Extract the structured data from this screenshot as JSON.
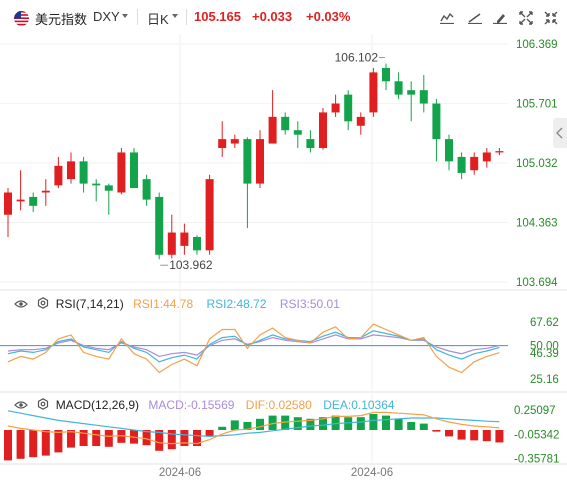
{
  "header": {
    "symbol_name": "美元指数",
    "ticker": "DXY",
    "period": "日K",
    "price": "105.165",
    "change": "+0.033",
    "change_pct": "+0.03%"
  },
  "toolbar": {
    "icons": [
      "indicator-icon",
      "draw-icon",
      "settings-icon",
      "fullscreen-icon",
      "collapse-icon"
    ]
  },
  "colors": {
    "up": "#e02020",
    "down": "#13a34a",
    "rsi1": "#f5a04a",
    "rsi2": "#43b5d8",
    "rsi3": "#a98bdb",
    "macd_line": "#f5a04a",
    "dea_line": "#43b5d8",
    "axis_text": "#2a8a2a"
  },
  "price_axis": [
    "106.369",
    "105.701",
    "105.032",
    "104.363",
    "103.694"
  ],
  "annotations": {
    "high": "106.102",
    "low": "103.962"
  },
  "rsi": {
    "title": "RSI(7,14,21)",
    "rsi1": "RSI1:44.78",
    "rsi2": "RSI2:48.72",
    "rsi3": "RSI3:50.01",
    "axis": [
      "67.62",
      "50.00",
      "46.39",
      "25.16"
    ]
  },
  "macd": {
    "title": "MACD(12,26,9)",
    "macd": "MACD:-0.15569",
    "dif": "DIF:0.02580",
    "dea": "DEA:0.10364",
    "axis": [
      "0.25097",
      "-0.05342",
      "-0.35781"
    ]
  },
  "x_axis": [
    "2024-06",
    "2024-06"
  ],
  "chart_data": {
    "type": "candlestick",
    "yrange": [
      103.694,
      106.369
    ],
    "candles": [
      {
        "o": 104.45,
        "h": 104.75,
        "l": 104.2,
        "c": 104.7
      },
      {
        "o": 104.6,
        "h": 104.95,
        "l": 104.5,
        "c": 104.62
      },
      {
        "o": 104.65,
        "h": 104.7,
        "l": 104.48,
        "c": 104.55
      },
      {
        "o": 104.7,
        "h": 104.85,
        "l": 104.55,
        "c": 104.72
      },
      {
        "o": 104.78,
        "h": 105.1,
        "l": 104.75,
        "c": 105.0
      },
      {
        "o": 104.85,
        "h": 105.15,
        "l": 104.8,
        "c": 105.05
      },
      {
        "o": 105.05,
        "h": 105.1,
        "l": 104.7,
        "c": 104.8
      },
      {
        "o": 104.8,
        "h": 104.85,
        "l": 104.6,
        "c": 104.78
      },
      {
        "o": 104.78,
        "h": 104.8,
        "l": 104.45,
        "c": 104.72
      },
      {
        "o": 104.7,
        "h": 105.2,
        "l": 104.68,
        "c": 105.15
      },
      {
        "o": 105.15,
        "h": 105.2,
        "l": 104.75,
        "c": 104.75
      },
      {
        "o": 104.85,
        "h": 104.9,
        "l": 104.55,
        "c": 104.62
      },
      {
        "o": 104.65,
        "h": 104.7,
        "l": 103.95,
        "c": 104.0
      },
      {
        "o": 104.0,
        "h": 104.45,
        "l": 103.96,
        "c": 104.25
      },
      {
        "o": 104.1,
        "h": 104.35,
        "l": 104.0,
        "c": 104.25
      },
      {
        "o": 104.2,
        "h": 104.22,
        "l": 104.0,
        "c": 104.05
      },
      {
        "o": 104.05,
        "h": 104.9,
        "l": 104.0,
        "c": 104.85
      },
      {
        "o": 105.2,
        "h": 105.5,
        "l": 105.1,
        "c": 105.3
      },
      {
        "o": 105.25,
        "h": 105.35,
        "l": 105.2,
        "c": 105.3
      },
      {
        "o": 105.3,
        "h": 105.32,
        "l": 104.3,
        "c": 104.8
      },
      {
        "o": 104.8,
        "h": 105.4,
        "l": 104.75,
        "c": 105.3
      },
      {
        "o": 105.25,
        "h": 105.85,
        "l": 105.25,
        "c": 105.55
      },
      {
        "o": 105.55,
        "h": 105.6,
        "l": 105.35,
        "c": 105.4
      },
      {
        "o": 105.4,
        "h": 105.5,
        "l": 105.2,
        "c": 105.35
      },
      {
        "o": 105.3,
        "h": 105.4,
        "l": 105.15,
        "c": 105.2
      },
      {
        "o": 105.2,
        "h": 105.65,
        "l": 105.18,
        "c": 105.6
      },
      {
        "o": 105.6,
        "h": 105.8,
        "l": 105.55,
        "c": 105.7
      },
      {
        "o": 105.8,
        "h": 105.85,
        "l": 105.4,
        "c": 105.5
      },
      {
        "o": 105.45,
        "h": 105.6,
        "l": 105.35,
        "c": 105.55
      },
      {
        "o": 105.6,
        "h": 106.1,
        "l": 105.55,
        "c": 106.05
      },
      {
        "o": 106.1,
        "h": 106.15,
        "l": 105.85,
        "c": 105.95
      },
      {
        "o": 105.95,
        "h": 106.05,
        "l": 105.75,
        "c": 105.8
      },
      {
        "o": 105.85,
        "h": 105.95,
        "l": 105.5,
        "c": 105.8
      },
      {
        "o": 105.85,
        "h": 106.02,
        "l": 105.6,
        "c": 105.7
      },
      {
        "o": 105.7,
        "h": 105.75,
        "l": 105.05,
        "c": 105.3
      },
      {
        "o": 105.3,
        "h": 105.35,
        "l": 104.95,
        "c": 105.05
      },
      {
        "o": 105.1,
        "h": 105.15,
        "l": 104.85,
        "c": 104.92
      },
      {
        "o": 104.95,
        "h": 105.15,
        "l": 104.9,
        "c": 105.1
      },
      {
        "o": 105.05,
        "h": 105.2,
        "l": 104.98,
        "c": 105.15
      },
      {
        "o": 105.15,
        "h": 105.2,
        "l": 105.12,
        "c": 105.165
      }
    ],
    "rsi1": [
      38,
      42,
      40,
      45,
      55,
      58,
      45,
      42,
      40,
      55,
      44,
      40,
      30,
      36,
      40,
      35,
      55,
      62,
      62,
      48,
      58,
      63,
      56,
      54,
      52,
      60,
      64,
      55,
      56,
      66,
      62,
      58,
      54,
      56,
      42,
      34,
      30,
      38,
      42,
      44.78
    ],
    "rsi2": [
      44,
      46,
      45,
      47,
      53,
      55,
      49,
      47,
      45,
      53,
      48,
      45,
      38,
      41,
      43,
      40,
      51,
      56,
      57,
      50,
      54,
      58,
      55,
      54,
      53,
      57,
      60,
      56,
      56,
      61,
      59,
      57,
      54,
      55,
      47,
      43,
      40,
      44,
      46,
      48.72
    ],
    "rsi3": [
      46,
      47,
      47,
      48,
      52,
      54,
      50,
      48,
      47,
      52,
      49,
      47,
      42,
      44,
      45,
      43,
      50,
      54,
      55,
      51,
      53,
      56,
      54,
      53,
      52,
      55,
      58,
      55,
      55,
      58,
      57,
      56,
      54,
      54,
      49,
      46,
      44,
      47,
      48,
      50.01
    ],
    "macd_hist": [
      -0.38,
      -0.36,
      -0.34,
      -0.32,
      -0.28,
      -0.22,
      -0.2,
      -0.2,
      -0.21,
      -0.16,
      -0.17,
      -0.19,
      -0.26,
      -0.24,
      -0.2,
      -0.2,
      -0.08,
      0.04,
      0.12,
      0.1,
      0.14,
      0.18,
      0.18,
      0.16,
      0.14,
      0.16,
      0.18,
      0.16,
      0.16,
      0.2,
      0.18,
      0.14,
      0.1,
      0.08,
      -0.02,
      -0.08,
      -0.12,
      -0.13,
      -0.14,
      -0.15569
    ],
    "dif": [
      0.05,
      0.02,
      0.0,
      -0.02,
      -0.03,
      -0.02,
      -0.04,
      -0.06,
      -0.08,
      -0.07,
      -0.09,
      -0.11,
      -0.16,
      -0.17,
      -0.16,
      -0.17,
      -0.12,
      -0.05,
      0.0,
      0.01,
      0.04,
      0.08,
      0.1,
      0.11,
      0.12,
      0.14,
      0.17,
      0.17,
      0.18,
      0.22,
      0.22,
      0.21,
      0.2,
      0.19,
      0.14,
      0.1,
      0.07,
      0.05,
      0.04,
      0.0258
    ],
    "dea": [
      0.24,
      0.21,
      0.18,
      0.15,
      0.12,
      0.1,
      0.08,
      0.06,
      0.04,
      0.02,
      0.0,
      -0.02,
      -0.03,
      -0.05,
      -0.06,
      -0.07,
      -0.08,
      -0.07,
      -0.06,
      -0.04,
      -0.03,
      -0.01,
      0.01,
      0.03,
      0.05,
      0.06,
      0.08,
      0.09,
      0.1,
      0.12,
      0.13,
      0.14,
      0.15,
      0.15,
      0.15,
      0.14,
      0.13,
      0.12,
      0.11,
      0.10364
    ]
  }
}
